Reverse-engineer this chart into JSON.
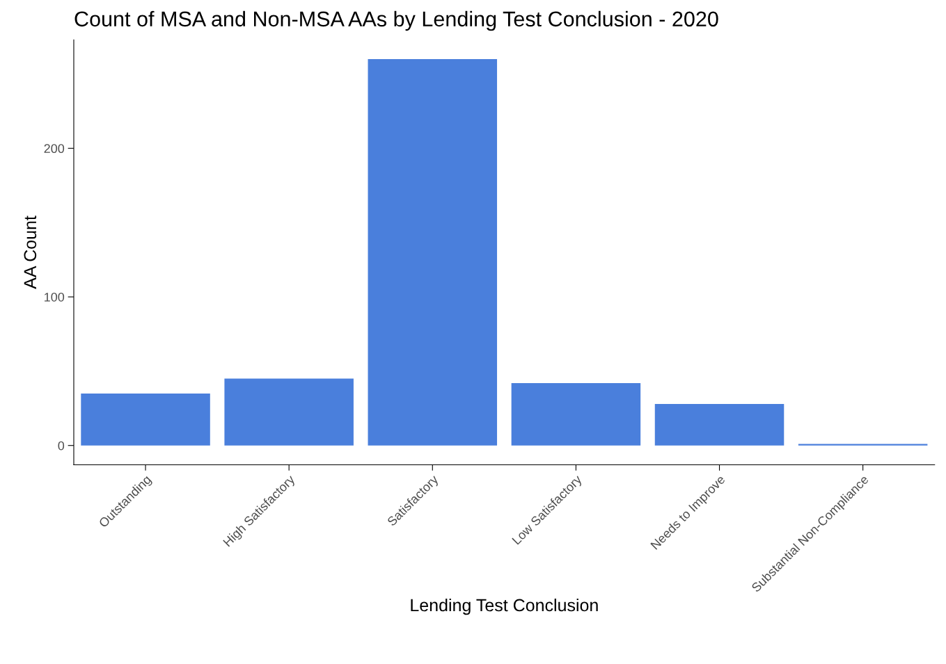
{
  "chart_data": {
    "type": "bar",
    "title": "Count of MSA and Non-MSA AAs by Lending Test Conclusion - 2020",
    "xlabel": "Lending Test Conclusion",
    "ylabel": "AA Count",
    "categories": [
      "Outstanding",
      "High Satisfactory",
      "Satisfactory",
      "Low Satisfactory",
      "Needs to Improve",
      "Substantial Non-Compliance"
    ],
    "values": [
      35,
      45,
      260,
      42,
      28,
      1
    ],
    "color": "#4a7fdc",
    "ylim": [
      -13,
      273
    ],
    "yticks": [
      0,
      100,
      200
    ],
    "grid": false,
    "legend": false
  }
}
